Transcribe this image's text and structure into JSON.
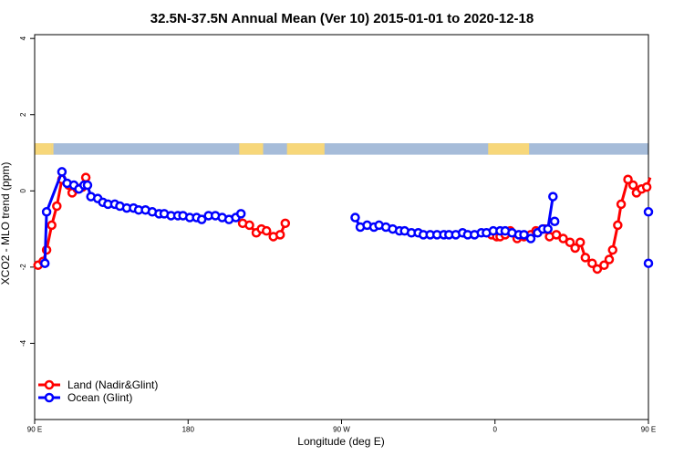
{
  "chart_data": {
    "type": "line",
    "title": "32.5N-37.5N Annual Mean (Ver 10)   2015-01-01 to 2020-12-18",
    "xlabel": "Longitude (deg E)",
    "ylabel": "XCO2 - MLO trend (ppm)",
    "xlim": [
      90,
      450
    ],
    "ylim": [
      -6,
      4.1
    ],
    "x_ticks": [
      {
        "value": 90,
        "label": "90 E"
      },
      {
        "value": 180,
        "label": "180"
      },
      {
        "value": 270,
        "label": "90 W"
      },
      {
        "value": 360,
        "label": "0"
      },
      {
        "value": 450,
        "label": "90 E"
      },
      {
        "value": 540,
        "label": "180"
      }
    ],
    "y_ticks": [
      {
        "value": 4,
        "label": "4"
      },
      {
        "value": 2,
        "label": "2"
      },
      {
        "value": 0,
        "label": "0"
      },
      {
        "value": -2,
        "label": "-2"
      },
      {
        "value": -4,
        "label": "-4"
      }
    ],
    "land_ocean_band": {
      "y_range": [
        0.95,
        1.25
      ],
      "land_color": "#f7d77a",
      "ocean_color": "#a6bcd9",
      "land_segments": [
        [
          90,
          100
        ],
        [
          100,
          101
        ],
        [
          210,
          224
        ],
        [
          238,
          260
        ],
        [
          356,
          380
        ],
        [
          397,
          396
        ],
        [
          453,
          460
        ],
        [
          483,
          485
        ]
      ]
    },
    "series": [
      {
        "name": "Land (Nadir&Glint)",
        "color": "#ff0000",
        "points": [
          [
            92,
            -1.95
          ],
          [
            95,
            -1.85
          ],
          [
            97,
            -1.55
          ],
          [
            100,
            -0.9
          ],
          [
            103,
            -0.4
          ],
          [
            106,
            0.3
          ],
          [
            110,
            0.15
          ],
          [
            112,
            -0.05
          ],
          [
            115,
            0.05
          ],
          [
            118,
            0.1
          ],
          [
            120,
            0.35
          ],
          [
            212,
            -0.85
          ],
          [
            216,
            -0.9
          ],
          [
            220,
            -1.1
          ],
          [
            223,
            -1.0
          ],
          [
            226,
            -1.05
          ],
          [
            230,
            -1.2
          ],
          [
            234,
            -1.15
          ],
          [
            237,
            -0.85
          ],
          [
            358,
            -1.15
          ],
          [
            361,
            -1.2
          ],
          [
            363,
            -1.2
          ],
          [
            366,
            -1.15
          ],
          [
            369,
            -1.05
          ],
          [
            373,
            -1.25
          ],
          [
            377,
            -1.2
          ],
          [
            381,
            -1.15
          ],
          [
            384,
            -1.05
          ],
          [
            389,
            -1.0
          ],
          [
            392,
            -1.2
          ],
          [
            396,
            -1.15
          ],
          [
            400,
            -1.25
          ],
          [
            404,
            -1.35
          ],
          [
            407,
            -1.5
          ],
          [
            410,
            -1.35
          ],
          [
            413,
            -1.75
          ],
          [
            417,
            -1.9
          ],
          [
            420,
            -2.05
          ],
          [
            424,
            -1.95
          ],
          [
            427,
            -1.8
          ],
          [
            429,
            -1.55
          ],
          [
            432,
            -0.9
          ],
          [
            434,
            -0.35
          ],
          [
            438,
            0.3
          ],
          [
            441,
            0.15
          ],
          [
            443,
            -0.05
          ],
          [
            446,
            0.05
          ],
          [
            449,
            0.1
          ],
          [
            451,
            0.35
          ]
        ]
      },
      {
        "name": "Ocean (Glint)",
        "color": "#0000ff",
        "points": [
          [
            96,
            -1.9
          ],
          [
            97,
            -0.55
          ],
          [
            106,
            0.5
          ],
          [
            109,
            0.2
          ],
          [
            113,
            0.15
          ],
          [
            116,
            0.05
          ],
          [
            119,
            0.15
          ],
          [
            121,
            0.15
          ],
          [
            123,
            -0.15
          ],
          [
            127,
            -0.2
          ],
          [
            130,
            -0.3
          ],
          [
            133,
            -0.35
          ],
          [
            137,
            -0.35
          ],
          [
            140,
            -0.4
          ],
          [
            144,
            -0.45
          ],
          [
            148,
            -0.45
          ],
          [
            151,
            -0.5
          ],
          [
            155,
            -0.5
          ],
          [
            159,
            -0.55
          ],
          [
            163,
            -0.6
          ],
          [
            166,
            -0.6
          ],
          [
            170,
            -0.65
          ],
          [
            174,
            -0.65
          ],
          [
            177,
            -0.65
          ],
          [
            181,
            -0.7
          ],
          [
            185,
            -0.7
          ],
          [
            188,
            -0.75
          ],
          [
            192,
            -0.65
          ],
          [
            196,
            -0.65
          ],
          [
            200,
            -0.7
          ],
          [
            204,
            -0.75
          ],
          [
            208,
            -0.7
          ],
          [
            211,
            -0.6
          ],
          [
            278,
            -0.7
          ],
          [
            281,
            -0.95
          ],
          [
            285,
            -0.9
          ],
          [
            289,
            -0.95
          ],
          [
            292,
            -0.9
          ],
          [
            296,
            -0.95
          ],
          [
            300,
            -1.0
          ],
          [
            304,
            -1.05
          ],
          [
            307,
            -1.05
          ],
          [
            311,
            -1.1
          ],
          [
            315,
            -1.1
          ],
          [
            318,
            -1.15
          ],
          [
            322,
            -1.15
          ],
          [
            326,
            -1.15
          ],
          [
            330,
            -1.15
          ],
          [
            333,
            -1.15
          ],
          [
            337,
            -1.15
          ],
          [
            341,
            -1.1
          ],
          [
            344,
            -1.15
          ],
          [
            348,
            -1.15
          ],
          [
            352,
            -1.1
          ],
          [
            355,
            -1.1
          ],
          [
            359,
            -1.05
          ],
          [
            363,
            -1.05
          ],
          [
            366,
            -1.05
          ],
          [
            370,
            -1.1
          ],
          [
            374,
            -1.15
          ],
          [
            377,
            -1.15
          ],
          [
            381,
            -1.25
          ],
          [
            385,
            -1.1
          ],
          [
            388,
            -1.0
          ],
          [
            391,
            -1.0
          ],
          [
            394,
            -0.15
          ]
        ]
      }
    ],
    "extra_points": [
      {
        "series": "Ocean (Glint)",
        "x": 395,
        "y": -0.8,
        "connected": false
      },
      {
        "series": "Ocean (Glint)",
        "x": 452,
        "y": -1.9,
        "connected": false
      },
      {
        "series": "Ocean (Glint)",
        "x": 453,
        "y": -0.55,
        "connected": false
      }
    ],
    "legend": {
      "position": "bottom-left",
      "entries": [
        {
          "label": "Land (Nadir&Glint)",
          "color": "#ff0000"
        },
        {
          "label": "Ocean (Glint)",
          "color": "#0000ff"
        }
      ]
    },
    "grid": false
  }
}
